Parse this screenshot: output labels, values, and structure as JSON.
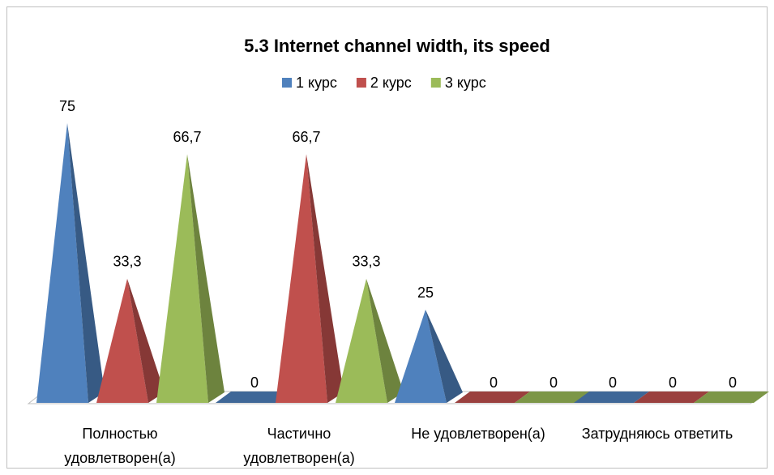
{
  "chart_data": {
    "type": "pyramid3d",
    "title": "5.3 Internet channel width, its speed",
    "categories": [
      "Полностью удовлетворен(а)",
      "Частично удовлетворен(а)",
      "Не удовлетворен(а)",
      "Затрудняюсь ответить"
    ],
    "series": [
      {
        "name": "1 курс",
        "color": "#4f81bd",
        "values": [
          75,
          0,
          25,
          0
        ],
        "value_labels": [
          "75",
          "0",
          "25",
          "0"
        ]
      },
      {
        "name": "2 курс",
        "color": "#c0504d",
        "values": [
          33.3,
          66.7,
          0,
          0
        ],
        "value_labels": [
          "33,3",
          "66,7",
          "0",
          "0"
        ]
      },
      {
        "name": "3 курс",
        "color": "#9bbb59",
        "values": [
          66.7,
          33.3,
          0,
          0
        ],
        "value_labels": [
          "66,7",
          "33,3",
          "0",
          "0"
        ]
      }
    ],
    "legend": "top"
  }
}
